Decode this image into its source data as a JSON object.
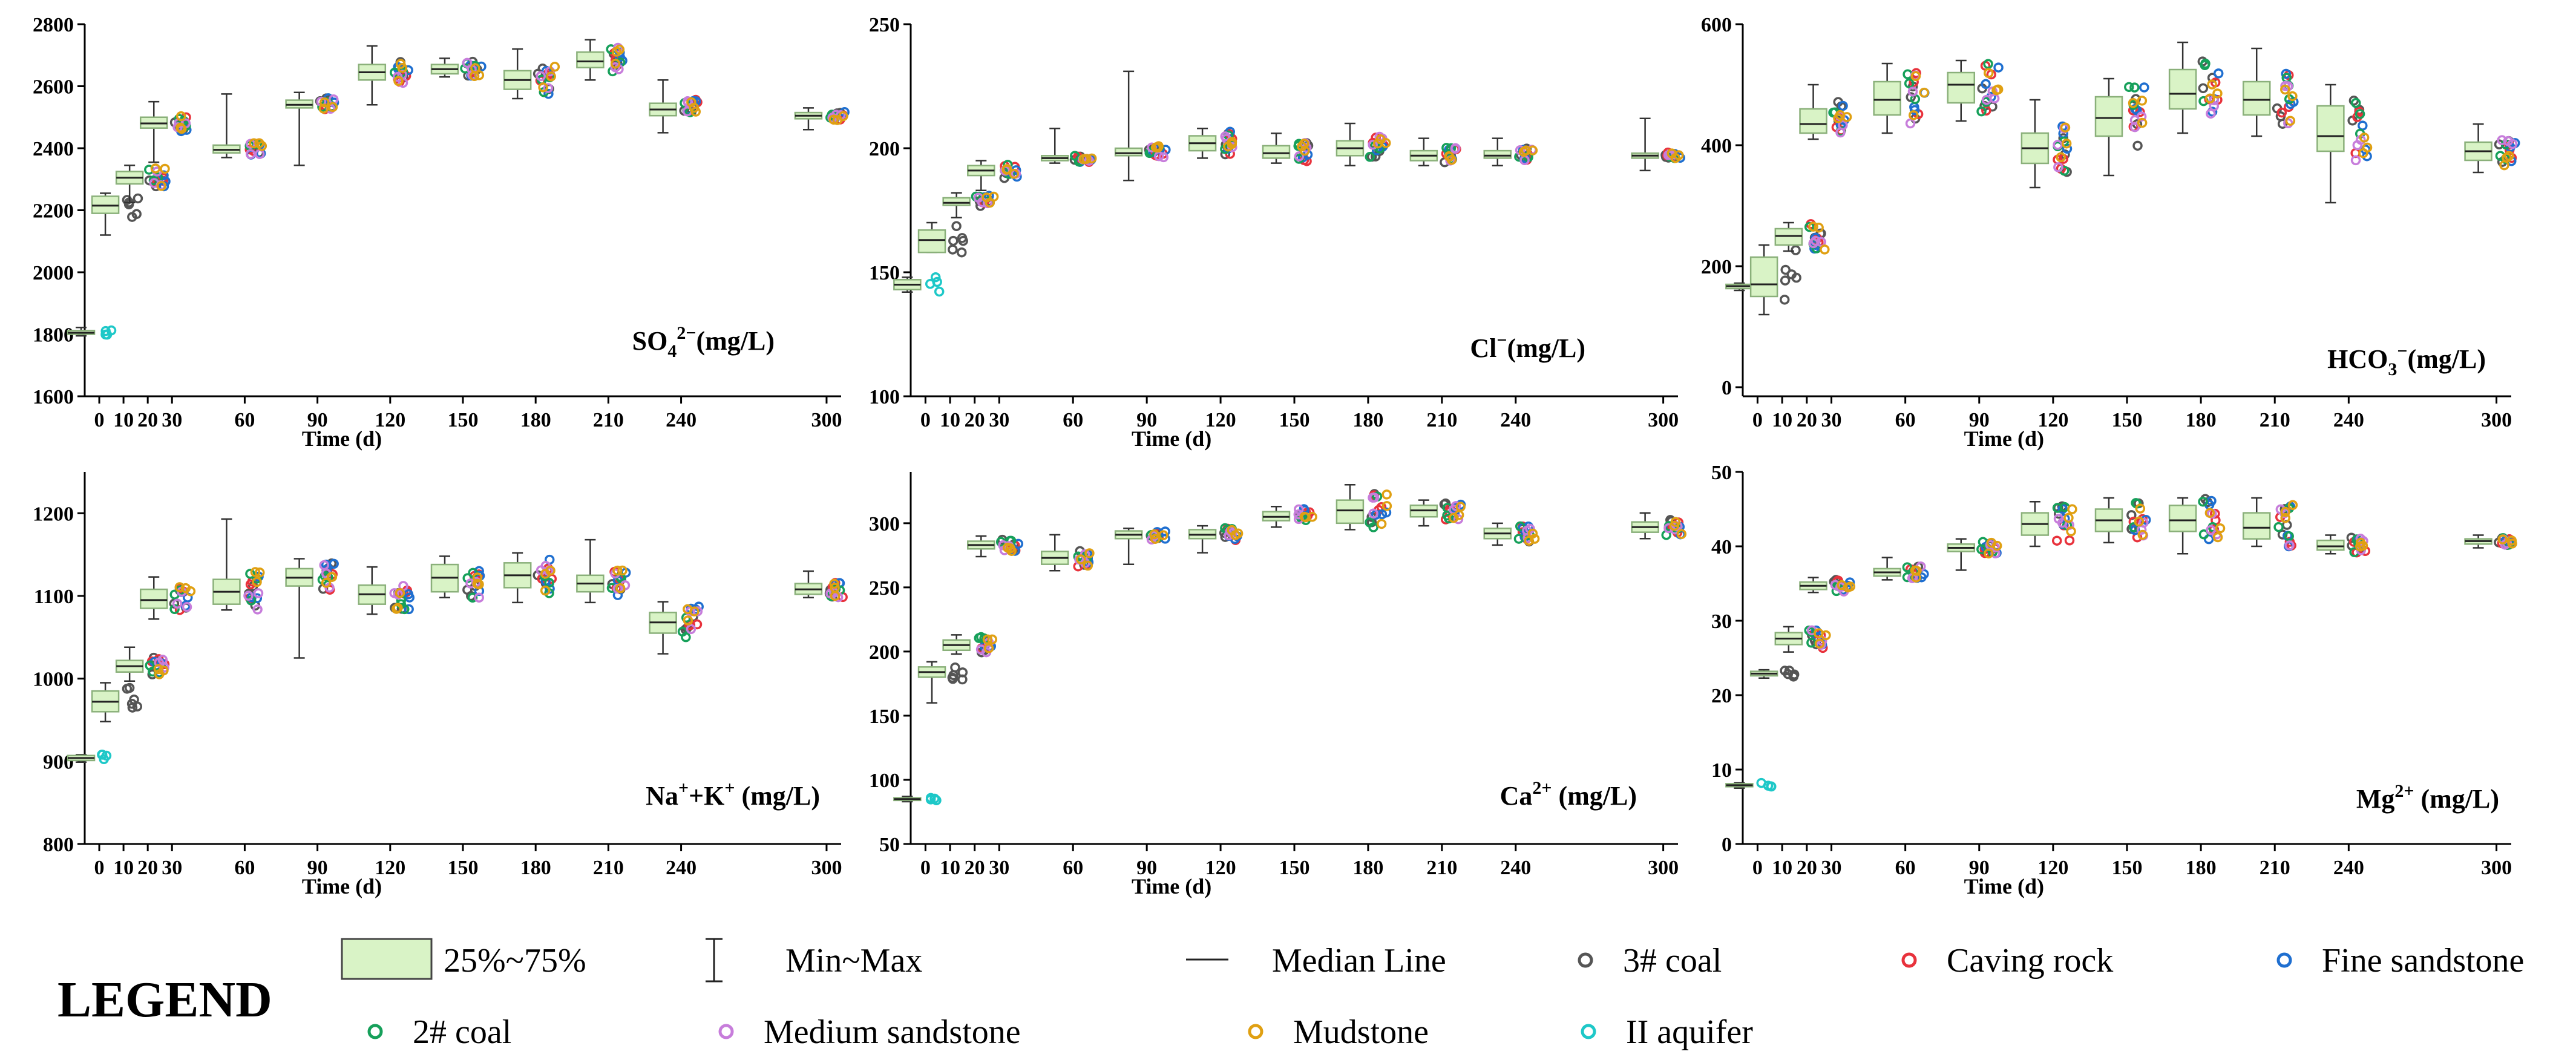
{
  "chart_data": {
    "type": "box",
    "x_axis": {
      "label": "Time (d)",
      "tick_labels": [
        "0",
        "10",
        "20",
        "30",
        "60",
        "90",
        "120",
        "150",
        "180",
        "210",
        "240",
        "300"
      ],
      "range": [
        -6,
        306
      ]
    },
    "groups": [
      "3# coal",
      "Caving rock",
      "Fine sandstone",
      "2# coal",
      "Medium sandstone",
      "Mudstone",
      "II aquifer"
    ],
    "group_colors": {
      "3# coal": "#555555",
      "Caving rock": "#e8323c",
      "Fine sandstone": "#1f6fd0",
      "2# coal": "#16a05a",
      "Medium sandstone": "#c77ddb",
      "Mudstone": "#e0a012",
      "II aquifer": "#1ec8c8"
    },
    "box_fill": "#d9f3c6",
    "box_stroke": "#8ab07a",
    "panels": [
      {
        "id": "so4",
        "title_main": "SO",
        "title_sub": "4",
        "title_sup": "2−",
        "title_unit": "(mg/L)",
        "ylim": [
          1600,
          2800
        ],
        "yticks": [
          "1600",
          "1800",
          "2000",
          "2200",
          "2400",
          "2600",
          "2800"
        ],
        "boxes": [
          {
            "t": 0,
            "q1": 1800,
            "median": 1805,
            "q3": 1812,
            "min": 1795,
            "max": 1822
          },
          {
            "t": 10,
            "q1": 2190,
            "median": 2215,
            "q3": 2245,
            "min": 2120,
            "max": 2255
          },
          {
            "t": 20,
            "q1": 2285,
            "median": 2305,
            "q3": 2325,
            "min": 2225,
            "max": 2345
          },
          {
            "t": 30,
            "q1": 2465,
            "median": 2480,
            "q3": 2500,
            "min": 2355,
            "max": 2550
          },
          {
            "t": 60,
            "q1": 2385,
            "median": 2395,
            "q3": 2410,
            "min": 2370,
            "max": 2575
          },
          {
            "t": 90,
            "q1": 2530,
            "median": 2540,
            "q3": 2555,
            "min": 2345,
            "max": 2580
          },
          {
            "t": 120,
            "q1": 2620,
            "median": 2645,
            "q3": 2670,
            "min": 2540,
            "max": 2730
          },
          {
            "t": 150,
            "q1": 2640,
            "median": 2655,
            "q3": 2670,
            "min": 2630,
            "max": 2690
          },
          {
            "t": 180,
            "q1": 2590,
            "median": 2620,
            "q3": 2650,
            "min": 2560,
            "max": 2720
          },
          {
            "t": 210,
            "q1": 2660,
            "median": 2680,
            "q3": 2710,
            "min": 2620,
            "max": 2750
          },
          {
            "t": 240,
            "q1": 2505,
            "median": 2525,
            "q3": 2545,
            "min": 2450,
            "max": 2620
          },
          {
            "t": 300,
            "q1": 2495,
            "median": 2505,
            "q3": 2515,
            "min": 2460,
            "max": 2530
          }
        ]
      },
      {
        "id": "cl",
        "title_main": "Cl",
        "title_sub": "",
        "title_sup": "−",
        "title_unit": "(mg/L)",
        "ylim": [
          100,
          250
        ],
        "yticks": [
          "100",
          "150",
          "200",
          "250"
        ],
        "boxes": [
          {
            "t": 0,
            "q1": 143,
            "median": 145,
            "q3": 147,
            "min": 142,
            "max": 148
          },
          {
            "t": 10,
            "q1": 158,
            "median": 163,
            "q3": 167,
            "min": 158,
            "max": 170
          },
          {
            "t": 20,
            "q1": 177,
            "median": 178,
            "q3": 180,
            "min": 172,
            "max": 182
          },
          {
            "t": 30,
            "q1": 189,
            "median": 191,
            "q3": 193,
            "min": 183,
            "max": 195
          },
          {
            "t": 60,
            "q1": 195,
            "median": 196,
            "q3": 197,
            "min": 194,
            "max": 208
          },
          {
            "t": 90,
            "q1": 197,
            "median": 198,
            "q3": 200,
            "min": 187,
            "max": 231
          },
          {
            "t": 120,
            "q1": 199,
            "median": 202,
            "q3": 205,
            "min": 196,
            "max": 208
          },
          {
            "t": 150,
            "q1": 196,
            "median": 198,
            "q3": 201,
            "min": 194,
            "max": 206
          },
          {
            "t": 180,
            "q1": 197,
            "median": 200,
            "q3": 203,
            "min": 193,
            "max": 210
          },
          {
            "t": 210,
            "q1": 195,
            "median": 197,
            "q3": 199,
            "min": 193,
            "max": 204
          },
          {
            "t": 240,
            "q1": 196,
            "median": 197,
            "q3": 199,
            "min": 193,
            "max": 204
          },
          {
            "t": 300,
            "q1": 196,
            "median": 197,
            "q3": 198,
            "min": 191,
            "max": 212
          }
        ]
      },
      {
        "id": "hco3",
        "title_main": "HCO",
        "title_sub": "3",
        "title_sup": "−",
        "title_unit": "(mg/L)",
        "ylim": [
          -15,
          600
        ],
        "yticks": [
          "0",
          "200",
          "400",
          "600"
        ],
        "boxes": [
          {
            "t": 0,
            "q1": 163,
            "median": 167,
            "q3": 170,
            "min": 160,
            "max": 172
          },
          {
            "t": 10,
            "q1": 150,
            "median": 170,
            "q3": 215,
            "min": 120,
            "max": 235
          },
          {
            "t": 20,
            "q1": 235,
            "median": 250,
            "q3": 262,
            "min": 225,
            "max": 272
          },
          {
            "t": 30,
            "q1": 420,
            "median": 435,
            "q3": 460,
            "min": 410,
            "max": 500
          },
          {
            "t": 60,
            "q1": 450,
            "median": 475,
            "q3": 505,
            "min": 420,
            "max": 535
          },
          {
            "t": 90,
            "q1": 470,
            "median": 500,
            "q3": 520,
            "min": 440,
            "max": 540
          },
          {
            "t": 120,
            "q1": 370,
            "median": 395,
            "q3": 420,
            "min": 330,
            "max": 475
          },
          {
            "t": 150,
            "q1": 415,
            "median": 445,
            "q3": 480,
            "min": 350,
            "max": 510
          },
          {
            "t": 180,
            "q1": 460,
            "median": 485,
            "q3": 525,
            "min": 420,
            "max": 570
          },
          {
            "t": 210,
            "q1": 450,
            "median": 475,
            "q3": 505,
            "min": 415,
            "max": 560
          },
          {
            "t": 240,
            "q1": 390,
            "median": 415,
            "q3": 465,
            "min": 305,
            "max": 500
          },
          {
            "t": 300,
            "q1": 375,
            "median": 390,
            "q3": 405,
            "min": 355,
            "max": 435
          }
        ]
      },
      {
        "id": "nak",
        "title_main": "Na",
        "title_sub": "",
        "title_sup": "+",
        "title_main2": "+K",
        "title_sup2": "+",
        "title_unit": " (mg/L)",
        "ylim": [
          800,
          1250
        ],
        "yticks": [
          "800",
          "900",
          "1000",
          "1100",
          "1200"
        ],
        "boxes": [
          {
            "t": 0,
            "q1": 901,
            "median": 904,
            "q3": 907,
            "min": 899,
            "max": 908
          },
          {
            "t": 10,
            "q1": 960,
            "median": 972,
            "q3": 985,
            "min": 948,
            "max": 995
          },
          {
            "t": 20,
            "q1": 1008,
            "median": 1015,
            "q3": 1022,
            "min": 997,
            "max": 1038
          },
          {
            "t": 30,
            "q1": 1085,
            "median": 1095,
            "q3": 1108,
            "min": 1072,
            "max": 1123
          },
          {
            "t": 60,
            "q1": 1090,
            "median": 1105,
            "q3": 1120,
            "min": 1083,
            "max": 1193
          },
          {
            "t": 90,
            "q1": 1112,
            "median": 1122,
            "q3": 1133,
            "min": 1025,
            "max": 1145
          },
          {
            "t": 120,
            "q1": 1090,
            "median": 1102,
            "q3": 1113,
            "min": 1078,
            "max": 1135
          },
          {
            "t": 150,
            "q1": 1105,
            "median": 1122,
            "q3": 1138,
            "min": 1098,
            "max": 1148
          },
          {
            "t": 180,
            "q1": 1110,
            "median": 1125,
            "q3": 1140,
            "min": 1092,
            "max": 1152
          },
          {
            "t": 210,
            "q1": 1105,
            "median": 1115,
            "q3": 1125,
            "min": 1092,
            "max": 1168
          },
          {
            "t": 240,
            "q1": 1055,
            "median": 1068,
            "q3": 1080,
            "min": 1030,
            "max": 1093
          },
          {
            "t": 300,
            "q1": 1102,
            "median": 1108,
            "q3": 1115,
            "min": 1098,
            "max": 1130
          }
        ]
      },
      {
        "id": "ca",
        "title_main": "Ca",
        "title_sub": "",
        "title_sup": "2+",
        "title_unit": " (mg/L)",
        "ylim": [
          50,
          340
        ],
        "yticks": [
          "50",
          "100",
          "150",
          "200",
          "250",
          "300"
        ],
        "boxes": [
          {
            "t": 0,
            "q1": 84,
            "median": 85,
            "q3": 86,
            "min": 83,
            "max": 87
          },
          {
            "t": 10,
            "q1": 180,
            "median": 184,
            "q3": 188,
            "min": 160,
            "max": 192
          },
          {
            "t": 20,
            "q1": 201,
            "median": 205,
            "q3": 209,
            "min": 198,
            "max": 213
          },
          {
            "t": 30,
            "q1": 280,
            "median": 283,
            "q3": 286,
            "min": 274,
            "max": 290
          },
          {
            "t": 60,
            "q1": 268,
            "median": 273,
            "q3": 278,
            "min": 263,
            "max": 291
          },
          {
            "t": 90,
            "q1": 288,
            "median": 291,
            "q3": 294,
            "min": 268,
            "max": 296
          },
          {
            "t": 120,
            "q1": 288,
            "median": 291,
            "q3": 295,
            "min": 277,
            "max": 298
          },
          {
            "t": 150,
            "q1": 302,
            "median": 305,
            "q3": 309,
            "min": 297,
            "max": 313
          },
          {
            "t": 180,
            "q1": 300,
            "median": 310,
            "q3": 318,
            "min": 295,
            "max": 330
          },
          {
            "t": 210,
            "q1": 305,
            "median": 310,
            "q3": 314,
            "min": 298,
            "max": 318
          },
          {
            "t": 240,
            "q1": 288,
            "median": 292,
            "q3": 296,
            "min": 283,
            "max": 300
          },
          {
            "t": 300,
            "q1": 293,
            "median": 297,
            "q3": 301,
            "min": 288,
            "max": 308
          }
        ]
      },
      {
        "id": "mg",
        "title_main": "Mg",
        "title_sub": "",
        "title_sup": "2+",
        "title_unit": " (mg/L)",
        "ylim": [
          0,
          50
        ],
        "yticks": [
          "0",
          "10",
          "20",
          "30",
          "40",
          "50"
        ],
        "boxes": [
          {
            "t": 0,
            "q1": 7.7,
            "median": 7.9,
            "q3": 8.1,
            "min": 7.5,
            "max": 8.2
          },
          {
            "t": 10,
            "q1": 22.6,
            "median": 22.9,
            "q3": 23.2,
            "min": 22.3,
            "max": 23.4
          },
          {
            "t": 20,
            "q1": 26.8,
            "median": 27.6,
            "q3": 28.4,
            "min": 25.8,
            "max": 29.2
          },
          {
            "t": 30,
            "q1": 34.2,
            "median": 34.7,
            "q3": 35.2,
            "min": 33.8,
            "max": 35.8
          },
          {
            "t": 60,
            "q1": 36.0,
            "median": 36.5,
            "q3": 37.0,
            "min": 35.5,
            "max": 38.5
          },
          {
            "t": 90,
            "q1": 39.3,
            "median": 39.8,
            "q3": 40.3,
            "min": 36.8,
            "max": 41.0
          },
          {
            "t": 120,
            "q1": 41.5,
            "median": 43.0,
            "q3": 44.5,
            "min": 40.0,
            "max": 46.0
          },
          {
            "t": 150,
            "q1": 42.0,
            "median": 43.5,
            "q3": 45.0,
            "min": 40.5,
            "max": 46.5
          },
          {
            "t": 180,
            "q1": 42.0,
            "median": 43.5,
            "q3": 45.5,
            "min": 39.0,
            "max": 46.5
          },
          {
            "t": 210,
            "q1": 41.0,
            "median": 42.5,
            "q3": 44.5,
            "min": 40.0,
            "max": 46.5
          },
          {
            "t": 240,
            "q1": 39.5,
            "median": 40.0,
            "q3": 40.8,
            "min": 39.0,
            "max": 41.5
          },
          {
            "t": 300,
            "q1": 40.3,
            "median": 40.7,
            "q3": 41.0,
            "min": 39.8,
            "max": 41.5
          }
        ]
      }
    ],
    "legend": {
      "title": "LEGEND",
      "items": [
        {
          "label": "25%~75%",
          "kind": "box"
        },
        {
          "label": "Min~Max",
          "kind": "whisker"
        },
        {
          "label": "Median Line",
          "kind": "line"
        },
        {
          "label": "3# coal",
          "kind": "marker",
          "group": "3# coal"
        },
        {
          "label": "Caving rock",
          "kind": "marker",
          "group": "Caving rock"
        },
        {
          "label": "Fine sandstone",
          "kind": "marker",
          "group": "Fine sandstone"
        },
        {
          "label": "2# coal",
          "kind": "marker",
          "group": "2# coal"
        },
        {
          "label": "Medium sandstone",
          "kind": "marker",
          "group": "Medium sandstone"
        },
        {
          "label": "Mudstone",
          "kind": "marker",
          "group": "Mudstone"
        },
        {
          "label": "II aquifer",
          "kind": "marker",
          "group": "II aquifer"
        }
      ]
    }
  }
}
